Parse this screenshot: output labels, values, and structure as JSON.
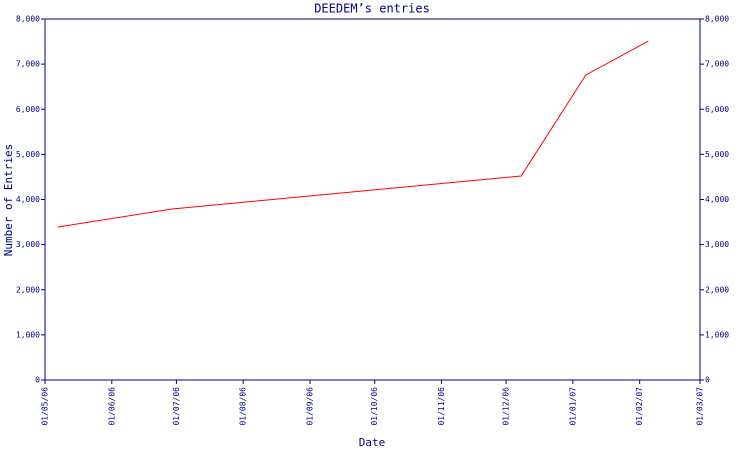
{
  "chart_data": {
    "type": "line",
    "title": "DEEDEM’s entries",
    "x_label": "Date",
    "y_label": "Number of Entries",
    "x": [
      "2006-05-07",
      "2006-06-29",
      "2006-12-08",
      "2007-01-07",
      "2007-02-05"
    ],
    "series": [
      {
        "color": "#ff0000",
        "values": [
          3390,
          3790,
          4520,
          6760,
          7510
        ]
      }
    ],
    "xlim": [
      "2006-05-01",
      "2007-03-01"
    ],
    "xticks": [
      {
        "value": "2006-05-01",
        "label": "01/05/06"
      },
      {
        "value": "2006-06-01",
        "label": "01/06/06"
      },
      {
        "value": "2006-07-01",
        "label": "01/07/06"
      },
      {
        "value": "2006-08-01",
        "label": "01/08/06"
      },
      {
        "value": "2006-09-01",
        "label": "01/09/06"
      },
      {
        "value": "2006-10-01",
        "label": "01/10/06"
      },
      {
        "value": "2006-11-01",
        "label": "01/11/06"
      },
      {
        "value": "2006-12-01",
        "label": "01/12/06"
      },
      {
        "value": "2007-01-01",
        "label": "01/01/07"
      },
      {
        "value": "2007-02-01",
        "label": "01/02/07"
      },
      {
        "value": "2007-03-01",
        "label": "01/03/07"
      }
    ],
    "ylim": [
      0,
      8000
    ],
    "yticks": [
      0,
      {
        "value": 1000,
        "label": "1,000"
      },
      {
        "value": 2000,
        "label": "2,000"
      },
      {
        "value": 3000,
        "label": "3,000"
      },
      {
        "value": 4000,
        "label": "4,000"
      },
      {
        "value": 5000,
        "label": "5,000"
      },
      {
        "value": 6000,
        "label": "6,000"
      },
      {
        "value": 7000,
        "label": "7,000"
      },
      {
        "value": 8000,
        "label": "8,000"
      }
    ],
    "axis_color": "#000080",
    "right_axis_labels": true
  }
}
